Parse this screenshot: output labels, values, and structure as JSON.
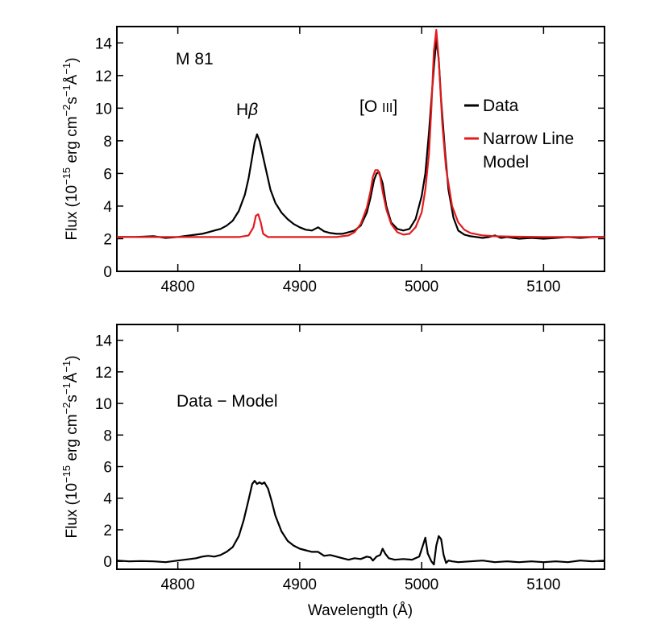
{
  "chart_data": [
    {
      "type": "line",
      "xlim": [
        4750,
        5150
      ],
      "ylim": [
        0,
        15
      ],
      "xticks": [
        4800,
        4900,
        5000,
        5100
      ],
      "yticks": [
        0,
        2,
        4,
        6,
        8,
        10,
        12,
        14
      ],
      "xlabel": "",
      "ylabel": "Flux (10⁻¹⁵ erg cm⁻² s⁻¹ Å⁻¹)",
      "grid": false,
      "annotations": {
        "object": "M 81",
        "line1": "Hβ",
        "line2": "[O III]"
      },
      "legend": {
        "placement": "top-right",
        "entries": [
          {
            "label": "Data",
            "color": "#000000"
          },
          {
            "label": "Narrow Line Model",
            "color": "#e41a1c"
          }
        ]
      },
      "series": [
        {
          "name": "Data",
          "color": "#000000",
          "x": [
            4750,
            4765,
            4780,
            4790,
            4800,
            4810,
            4820,
            4825,
            4830,
            4835,
            4840,
            4845,
            4850,
            4855,
            4858,
            4861,
            4863,
            4865,
            4867,
            4870,
            4873,
            4876,
            4880,
            4885,
            4890,
            4895,
            4900,
            4905,
            4910,
            4915,
            4920,
            4925,
            4930,
            4935,
            4940,
            4945,
            4950,
            4955,
            4958,
            4961,
            4963,
            4965,
            4968,
            4971,
            4975,
            4980,
            4985,
            4990,
            4995,
            5000,
            5003,
            5006,
            5008,
            5010,
            5012,
            5014,
            5016,
            5019,
            5022,
            5026,
            5030,
            5035,
            5040,
            5045,
            5050,
            5055,
            5060,
            5065,
            5070,
            5080,
            5090,
            5100,
            5110,
            5120,
            5130,
            5140,
            5150
          ],
          "y": [
            2.1,
            2.1,
            2.15,
            2.05,
            2.1,
            2.2,
            2.3,
            2.4,
            2.5,
            2.6,
            2.8,
            3.1,
            3.7,
            4.7,
            5.7,
            7.0,
            7.9,
            8.4,
            8.0,
            7.0,
            6.0,
            5.0,
            4.2,
            3.6,
            3.2,
            2.9,
            2.7,
            2.55,
            2.5,
            2.7,
            2.45,
            2.35,
            2.3,
            2.3,
            2.4,
            2.5,
            2.8,
            3.6,
            4.5,
            5.6,
            6.0,
            6.1,
            5.4,
            4.0,
            3.0,
            2.6,
            2.5,
            2.6,
            3.2,
            4.6,
            6.0,
            8.5,
            10.5,
            12.5,
            14.2,
            13.0,
            10.5,
            7.5,
            5.0,
            3.3,
            2.5,
            2.25,
            2.15,
            2.1,
            2.05,
            2.1,
            2.2,
            2.05,
            2.1,
            2.0,
            2.05,
            2.0,
            2.05,
            2.1,
            2.05,
            2.1,
            2.1
          ]
        },
        {
          "name": "Narrow Line Model",
          "color": "#e41a1c",
          "x": [
            4750,
            4800,
            4850,
            4858,
            4862,
            4864,
            4866,
            4868,
            4870,
            4874,
            4900,
            4930,
            4940,
            4945,
            4950,
            4955,
            4958,
            4960,
            4962,
            4964,
            4966,
            4968,
            4971,
            4975,
            4980,
            4985,
            4990,
            4995,
            5000,
            5003,
            5006,
            5008,
            5010,
            5012,
            5014,
            5017,
            5020,
            5025,
            5030,
            5035,
            5040,
            5050,
            5060,
            5080,
            5100,
            5150
          ],
          "y": [
            2.1,
            2.1,
            2.1,
            2.2,
            2.7,
            3.4,
            3.5,
            3.0,
            2.3,
            2.1,
            2.1,
            2.1,
            2.2,
            2.4,
            2.9,
            3.9,
            4.9,
            5.8,
            6.2,
            6.2,
            5.8,
            4.9,
            3.8,
            2.9,
            2.4,
            2.25,
            2.3,
            2.7,
            3.6,
            5.0,
            7.2,
            10.0,
            13.5,
            14.8,
            13.0,
            9.0,
            6.3,
            4.0,
            3.0,
            2.55,
            2.35,
            2.2,
            2.15,
            2.12,
            2.1,
            2.1
          ]
        }
      ]
    },
    {
      "type": "line",
      "xlim": [
        4750,
        5150
      ],
      "ylim": [
        -0.5,
        15
      ],
      "xticks": [
        4800,
        4900,
        5000,
        5100
      ],
      "yticks": [
        0,
        2,
        4,
        6,
        8,
        10,
        12,
        14
      ],
      "xlabel": "Wavelength (Å)",
      "ylabel": "Flux (10⁻¹⁵ erg cm⁻² s⁻¹ Å⁻¹)",
      "grid": false,
      "annotations": {
        "residual": "Data − Model"
      },
      "series": [
        {
          "color": "#000000",
          "x": [
            4750,
            4760,
            4770,
            4780,
            4790,
            4800,
            4810,
            4815,
            4820,
            4825,
            4830,
            4835,
            4840,
            4845,
            4850,
            4854,
            4858,
            4861,
            4863,
            4865,
            4867,
            4869,
            4871,
            4874,
            4877,
            4880,
            4885,
            4890,
            4895,
            4900,
            4905,
            4910,
            4915,
            4920,
            4925,
            4930,
            4935,
            4940,
            4945,
            4950,
            4955,
            4958,
            4960,
            4963,
            4966,
            4968,
            4970,
            4973,
            4978,
            4985,
            4992,
            4998,
            5001,
            5003,
            5005,
            5008,
            5010,
            5012,
            5014,
            5016,
            5018,
            5020,
            5022,
            5025,
            5030,
            5040,
            5050,
            5060,
            5070,
            5080,
            5090,
            5100,
            5110,
            5120,
            5130,
            5140,
            5150
          ],
          "y": [
            0.05,
            0.0,
            0.02,
            0.0,
            -0.05,
            0.05,
            0.15,
            0.2,
            0.3,
            0.35,
            0.3,
            0.4,
            0.6,
            0.9,
            1.6,
            2.6,
            3.9,
            4.9,
            5.1,
            4.9,
            5.0,
            4.9,
            5.0,
            4.6,
            3.8,
            2.9,
            1.9,
            1.3,
            1.0,
            0.8,
            0.7,
            0.6,
            0.6,
            0.35,
            0.4,
            0.3,
            0.2,
            0.1,
            0.2,
            0.15,
            0.3,
            0.25,
            0.05,
            0.3,
            0.4,
            0.8,
            0.5,
            0.2,
            0.1,
            0.15,
            0.1,
            0.3,
            1.0,
            1.5,
            0.5,
            0.0,
            -0.2,
            1.0,
            1.6,
            1.4,
            0.4,
            -0.1,
            0.05,
            0.0,
            -0.05,
            0.0,
            0.05,
            -0.05,
            0.0,
            -0.05,
            0.0,
            -0.05,
            0.0,
            -0.05,
            0.05,
            0.0,
            0.05
          ]
        }
      ]
    }
  ]
}
